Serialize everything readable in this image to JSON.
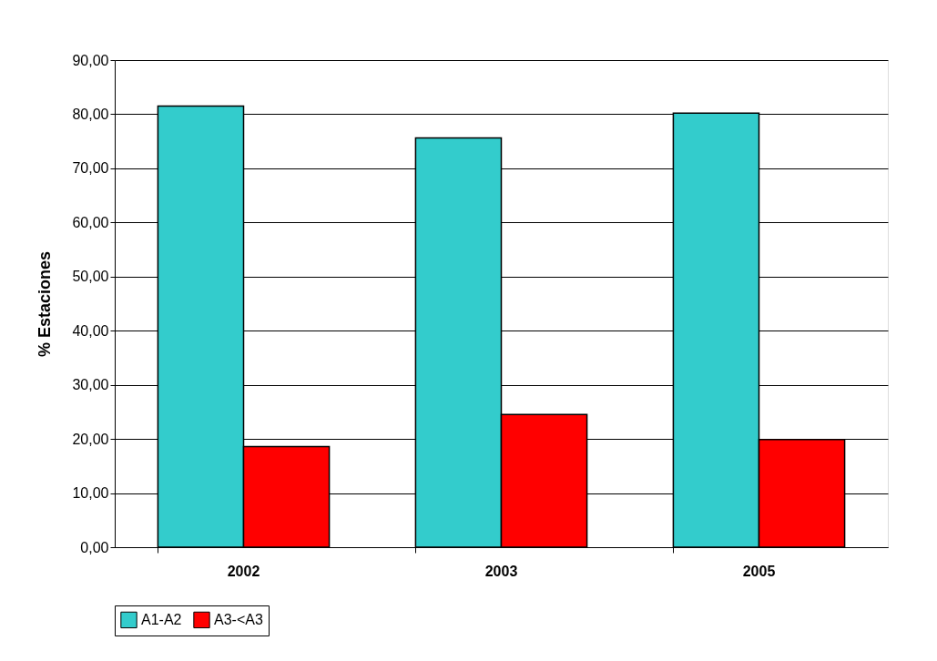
{
  "chart_data": {
    "type": "bar",
    "ylabel": "% Estaciones",
    "categories": [
      "2002",
      "2003",
      "2005"
    ],
    "series": [
      {
        "name": "A1-A2",
        "color": "#33cccc",
        "values": [
          81.5,
          75.6,
          80.2
        ]
      },
      {
        "name": "A3-<A3",
        "color": "#ff0000",
        "values": [
          18.6,
          24.5,
          19.9
        ]
      }
    ],
    "ylim": [
      0,
      90
    ],
    "yticks": [
      {
        "value": 0,
        "label": "0,00"
      },
      {
        "value": 10,
        "label": "10,00"
      },
      {
        "value": 20,
        "label": "20,00"
      },
      {
        "value": 30,
        "label": "30,00"
      },
      {
        "value": 40,
        "label": "40,00"
      },
      {
        "value": 50,
        "label": "50,00"
      },
      {
        "value": 60,
        "label": "60,00"
      },
      {
        "value": 70,
        "label": "70,00"
      },
      {
        "value": 80,
        "label": "80,00"
      },
      {
        "value": 90,
        "label": "90,00"
      }
    ],
    "grid": "y",
    "legend": "bottom"
  }
}
